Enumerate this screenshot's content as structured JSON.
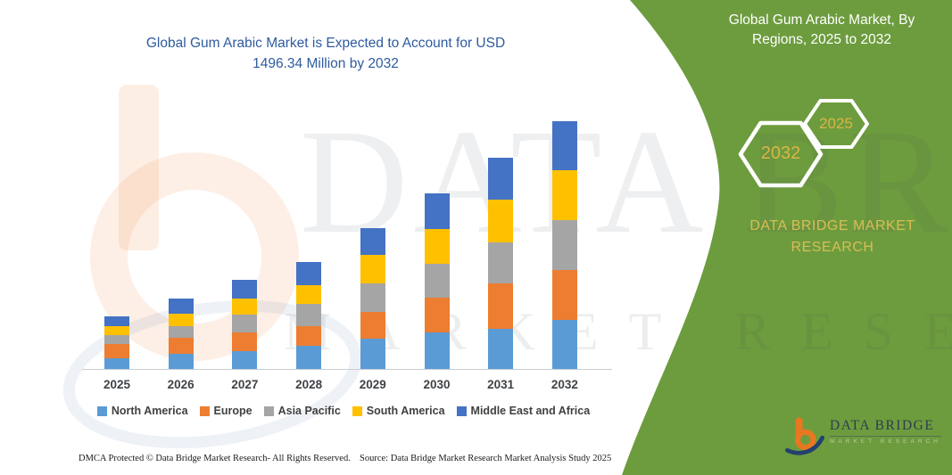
{
  "page": {
    "title_line1": "Global Gum Arabic Market is Expected to Account for USD",
    "title_line2": "1496.34 Million by 2032"
  },
  "right_panel": {
    "title_line1": "Global Gum Arabic Market, By",
    "title_line2": "Regions, 2025 to 2032",
    "hexagons": [
      {
        "label": "2032"
      },
      {
        "label": "2025"
      }
    ],
    "brand_line1": "DATA BRIDGE MARKET",
    "brand_line2": "RESEARCH"
  },
  "watermark": {
    "line1": "DATA BRIDGE",
    "line2": "MARKET RESEARCH"
  },
  "logo": {
    "name": "DATA BRIDGE",
    "subtitle": "MARKET RESEARCH"
  },
  "footer": {
    "left": "DMCA Protected © Data Bridge Market Research-  All Rights Reserved.",
    "right": "Source: Data Bridge Market Research  Market Analysis Study 2025"
  },
  "colors": {
    "green_panel": "#6d9c3e",
    "title_blue": "#2e5b9e",
    "gold": "#d9b545",
    "axis_gray": "#c9cdd2",
    "label_gray": "#404040",
    "logo_orange": "#e87722",
    "logo_navy": "#23406e"
  },
  "chart_data": {
    "type": "bar",
    "stacked": true,
    "title": "Global Gum Arabic Market is Expected to Account for USD 1496.34 Million by 2032",
    "value_unit": "USD Million",
    "xlabel": "",
    "ylabel": "",
    "grid": false,
    "legend_position": "bottom",
    "ylim": [
      0,
      1500
    ],
    "categories": [
      "2025",
      "2026",
      "2027",
      "2028",
      "2029",
      "2030",
      "2031",
      "2032"
    ],
    "series": [
      {
        "name": "North America",
        "color": "#5b9bd5",
        "values": [
          66,
          93,
          108,
          140,
          181,
          219,
          242,
          294.34
        ]
      },
      {
        "name": "Europe",
        "color": "#ed7d31",
        "values": [
          86,
          98,
          111,
          120,
          165,
          211,
          274,
          305
        ]
      },
      {
        "name": "Asia Pacific",
        "color": "#a5a5a5",
        "values": [
          54,
          68,
          108,
          131,
          171,
          206,
          251,
          301
        ]
      },
      {
        "name": "South America",
        "color": "#ffc000",
        "values": [
          54,
          75,
          98,
          113,
          172,
          210,
          255,
          300
        ]
      },
      {
        "name": "Middle East and Africa",
        "color": "#4472c4",
        "values": [
          58,
          90,
          113,
          144,
          160,
          215,
          254,
          296
        ]
      }
    ],
    "totals": [
      318,
      424,
      538,
      648,
      849,
      1061,
      1276,
      1496.34
    ]
  }
}
